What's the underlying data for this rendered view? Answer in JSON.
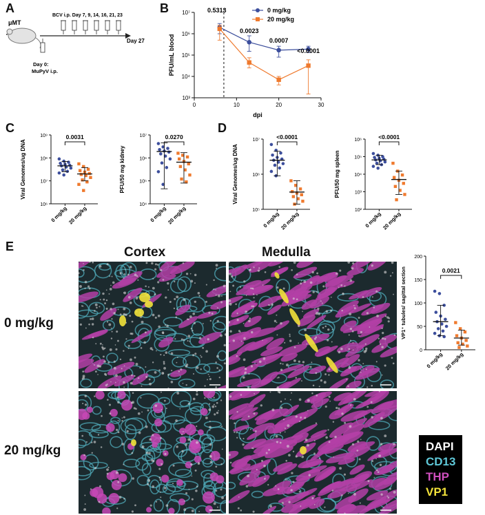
{
  "panels": {
    "a": "A",
    "b": "B",
    "c": "C",
    "d": "D",
    "e": "E"
  },
  "panel_a": {
    "mouse_label": "μMT",
    "bcv_label": "BCV i.p. Day 7, 9, 14, 16, 21, 23",
    "end_label": "Day 27",
    "day0_line1": "Day 0:",
    "day0_line2": "MuPyV i.p."
  },
  "panel_e": {
    "col_titles": [
      "Cortex",
      "Medulla"
    ],
    "row_titles": [
      "0 mg/kg",
      "20 mg/kg"
    ],
    "stain_legend": [
      {
        "label": "DAPI",
        "color": "#ffffff"
      },
      {
        "label": "CD13",
        "color": "#5fc8d8"
      },
      {
        "label": "THP",
        "color": "#d04fbf"
      },
      {
        "label": "VP1",
        "color": "#f2e23a"
      }
    ]
  },
  "colors": {
    "blue": "#3c4e9c",
    "orange": "#ef7a2e"
  },
  "chart_data": [
    {
      "id": "B",
      "type": "line",
      "xlabel": "dpi",
      "ylabel": "PFU/mL blood",
      "xlim": [
        0,
        30
      ],
      "xticks": [
        "0",
        "10",
        "20",
        "30"
      ],
      "ylim_log10": [
        3,
        7
      ],
      "yticks": [
        "10³",
        "10⁴",
        "10⁵",
        "10⁶",
        "10⁷"
      ],
      "x": [
        6,
        13,
        20,
        27
      ],
      "vline_x": 7,
      "annotations": [
        {
          "x": 6,
          "text": "0.5313"
        },
        {
          "x": 13,
          "text": "0.0023"
        },
        {
          "x": 20,
          "text": "0.0007"
        },
        {
          "x": 27,
          "text": "<0.0001"
        }
      ],
      "series": [
        {
          "name": "0 mg/kg",
          "color": "#3c4e9c",
          "values": [
            2000000,
            400000,
            170000,
            190000
          ],
          "err_low": [
            1000000,
            150000,
            80000,
            130000
          ],
          "err_high": [
            3000000,
            800000,
            260000,
            260000
          ]
        },
        {
          "name": "20 mg/kg",
          "color": "#ef7a2e",
          "values": [
            1700000,
            45000,
            7000,
            32000
          ],
          "err_low": [
            500000,
            25000,
            4000,
            1500
          ],
          "err_high": [
            2500000,
            75000,
            10000,
            60000
          ]
        }
      ]
    },
    {
      "id": "C1",
      "type": "scatter",
      "ylabel": "Viral Genomes/ug DNA",
      "categories": [
        "0 mg/kg",
        "20 mg/kg"
      ],
      "ylim_log10": [
        6,
        9
      ],
      "yticks": [
        "10⁶",
        "10⁷",
        "10⁸",
        "10⁹"
      ],
      "pvalue": "0.0031",
      "groups": [
        {
          "color": "#3c4e9c",
          "mean": 45000000,
          "sd_low": 25000000,
          "sd_high": 70000000,
          "points": [
            90000000,
            72000000,
            65000000,
            58000000,
            52000000,
            48000000,
            45000000,
            40000000,
            36000000,
            30000000,
            26000000,
            22000000,
            18000000
          ]
        },
        {
          "color": "#ef7a2e",
          "mean": 20000000,
          "sd_low": 10000000,
          "sd_high": 38000000,
          "points": [
            55000000,
            42000000,
            32000000,
            28000000,
            24000000,
            21000000,
            19000000,
            17000000,
            14000000,
            11000000,
            9000000,
            7000000,
            3800000
          ]
        }
      ]
    },
    {
      "id": "C2",
      "type": "scatter",
      "ylabel": "PFU/50 mg kidney",
      "categories": [
        "0 mg/kg",
        "20 mg/kg"
      ],
      "ylim_log10": [
        4,
        7
      ],
      "yticks": [
        "10⁴",
        "10⁵",
        "10⁶",
        "10⁷"
      ],
      "pvalue": "0.0270",
      "groups": [
        {
          "color": "#3c4e9c",
          "mean": 1900000,
          "sd_low": 45000,
          "sd_high": 4500000,
          "points": [
            4200000,
            3000000,
            2600000,
            2300000,
            2000000,
            1800000,
            1500000,
            1200000,
            900000,
            600000,
            380000,
            250000,
            70000
          ]
        },
        {
          "color": "#ef7a2e",
          "mean": 650000,
          "sd_low": 80000,
          "sd_high": 1700000,
          "points": [
            1600000,
            1300000,
            1100000,
            900000,
            700000,
            550000,
            420000,
            300000,
            180000,
            120000,
            90000
          ]
        }
      ]
    },
    {
      "id": "D1",
      "type": "scatter",
      "ylabel": "Viral Genomes/ug DNA",
      "categories": [
        "0 mg/kg",
        "20 mg/kg"
      ],
      "ylim_log10": [
        5,
        7
      ],
      "yticks": [
        "10⁵",
        "10⁶",
        "10⁷"
      ],
      "pvalue": "<0.0001",
      "groups": [
        {
          "color": "#3c4e9c",
          "mean": 2500000,
          "sd_low": 900000,
          "sd_high": 4500000,
          "points": [
            7000000,
            4800000,
            4000000,
            3500000,
            3000000,
            2700000,
            2500000,
            2200000,
            2000000,
            1800000,
            1500000,
            1200000,
            900000
          ]
        },
        {
          "color": "#ef7a2e",
          "mean": 310000,
          "sd_low": 140000,
          "sd_high": 650000,
          "points": [
            650000,
            480000,
            380000,
            320000,
            290000,
            260000,
            230000,
            200000,
            170000,
            140000
          ]
        }
      ]
    },
    {
      "id": "D2",
      "type": "scatter",
      "ylabel": "PFU/50 mg spleen",
      "categories": [
        "0 mg/kg",
        "20 mg/kg"
      ],
      "ylim_log10": [
        2,
        6
      ],
      "yticks": [
        "10²",
        "10³",
        "10⁴",
        "10⁵",
        "10⁶"
      ],
      "pvalue": "<0.0001",
      "groups": [
        {
          "color": "#3c4e9c",
          "mean": 65000,
          "sd_low": 35000,
          "sd_high": 120000,
          "points": [
            150000,
            120000,
            100000,
            90000,
            80000,
            72000,
            65000,
            58000,
            50000,
            42000,
            35000,
            28000,
            22000
          ]
        },
        {
          "color": "#ef7a2e",
          "mean": 5000,
          "sd_low": 700,
          "sd_high": 15000,
          "points": [
            42000,
            15000,
            9000,
            6500,
            4500,
            3000,
            2000,
            1200,
            700,
            350
          ]
        }
      ]
    },
    {
      "id": "E",
      "type": "scatter",
      "ylabel": "VP1⁺ tubules/ sagittal section",
      "categories": [
        "0 mg/kg",
        "20 mg/kg"
      ],
      "ylim": [
        0,
        200
      ],
      "yticks": [
        "0",
        "50",
        "100",
        "150",
        "200"
      ],
      "pvalue": "0.0021",
      "groups": [
        {
          "color": "#3c4e9c",
          "mean": 60,
          "sd_low": 30,
          "sd_high": 95,
          "points": [
            125,
            120,
            95,
            80,
            72,
            65,
            60,
            55,
            50,
            45,
            40,
            35,
            30,
            28
          ]
        },
        {
          "color": "#ef7a2e",
          "mean": 25,
          "sd_low": 10,
          "sd_high": 42,
          "points": [
            58,
            45,
            38,
            30,
            25,
            20,
            15,
            12,
            8,
            5
          ]
        }
      ]
    }
  ]
}
